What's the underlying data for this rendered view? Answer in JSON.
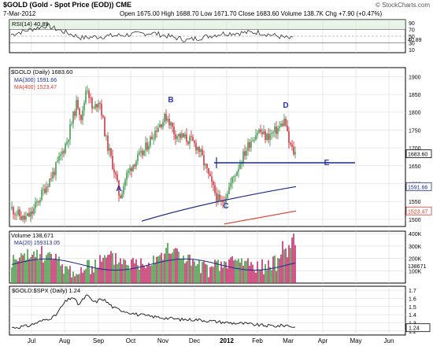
{
  "header": {
    "ticker_line": "$GOLD (Gold - Spot Price (EOD)) CME",
    "watermark": "© StockCharts.com",
    "date": "7-Mar-2012",
    "quote": "Open 1675.00  High 1688.70  Low 1671.70  Close 1683.60  Volume 138.7K  Chg +7.90 (+0.47%)"
  },
  "colors": {
    "up": "#2e8b3c",
    "down": "#c0202a",
    "ma300": "#1c2a8a",
    "ma400": "#e03a2a",
    "volume_ma": "#1c2a8a",
    "rsi": "#333333",
    "trendline": "#1c2a8a",
    "volume_up": "#4a9a48",
    "volume_down": "#c2306a",
    "panel_border": "#000000",
    "grid": "#dcdcdc",
    "label_letter": "#2a34b0"
  },
  "panels": {
    "rsi": {
      "legend": "RSI(14) 40.89",
      "ticks": [
        "90",
        "70",
        "50",
        "30",
        "10"
      ],
      "last_value": "40.89"
    },
    "price": {
      "legend_title": "$GOLD (Daily) 1683.60",
      "legend_ma300": "MA(300) 1591.66",
      "legend_ma400": "MA(400) 1523.47",
      "ticks": [
        "1900",
        "1850",
        "1800",
        "1750",
        "1700",
        "1650",
        "1600",
        "1550",
        "1500"
      ],
      "last_value": "1683.60",
      "ma300_value": "1591.66",
      "ma400_value": "1523.47",
      "points": [
        "A",
        "B",
        "C",
        "D",
        "E"
      ]
    },
    "volume": {
      "legend_title": "Volume 138,671",
      "legend_ma": "MA(20) 159313.05",
      "ticks": [
        "400K",
        "300K",
        "200K",
        "100K"
      ],
      "last_value": "138671"
    },
    "ratio": {
      "legend": "$GOLD:$SPX (Daily) 1.24",
      "ticks": [
        "1.7",
        "1.6",
        "1.5",
        "1.4",
        "1.3",
        "1.2"
      ],
      "last_value": "1.24"
    }
  },
  "x_axis": {
    "labels": [
      "Jul",
      "Aug",
      "Sep",
      "Oct",
      "Nov",
      "Dec",
      "2012",
      "Feb",
      "Mar",
      "Apr",
      "May",
      "Jun"
    ]
  },
  "chart_data": [
    {
      "type": "line",
      "name": "RSI(14)",
      "ylim": [
        0,
        100
      ],
      "reference_lines": [
        70,
        50,
        30
      ],
      "x": [
        "Jul",
        "Aug",
        "Sep",
        "Oct",
        "Nov",
        "Dec",
        "2012",
        "Feb",
        "Mar"
      ],
      "values": [
        55,
        82,
        45,
        52,
        60,
        38,
        58,
        62,
        40.89
      ]
    },
    {
      "type": "bar",
      "name": "$GOLD (Daily)",
      "ylim": [
        1480,
        1925
      ],
      "key_points": [
        {
          "label": "A",
          "x": "late Sep",
          "value": 1535
        },
        {
          "label": "B",
          "x": "early Nov",
          "value": 1800
        },
        {
          "label": "C",
          "x": "late Dec",
          "value": 1525
        },
        {
          "label": "D",
          "x": "late Feb",
          "value": 1790
        },
        {
          "label": "E",
          "x": "Mar",
          "value": 1640
        }
      ],
      "moving_averages": {
        "MA(300)": [
          1495,
          1591.66
        ],
        "MA(400)": [
          1480,
          1523.47
        ]
      },
      "horizontal_line": 1640,
      "last_close": 1683.6
    },
    {
      "type": "bar",
      "name": "Volume",
      "ylim": [
        0,
        420000
      ],
      "last_value": 138671,
      "ma20_last": 159313.05
    },
    {
      "type": "line",
      "name": "$GOLD:$SPX (Daily)",
      "ylim": [
        1.15,
        1.75
      ],
      "x": [
        "Jul",
        "Aug",
        "Sep",
        "Oct",
        "Nov",
        "Dec",
        "2012",
        "Feb",
        "Mar"
      ],
      "values": [
        1.24,
        1.55,
        1.6,
        1.42,
        1.37,
        1.32,
        1.3,
        1.25,
        1.24
      ]
    }
  ]
}
